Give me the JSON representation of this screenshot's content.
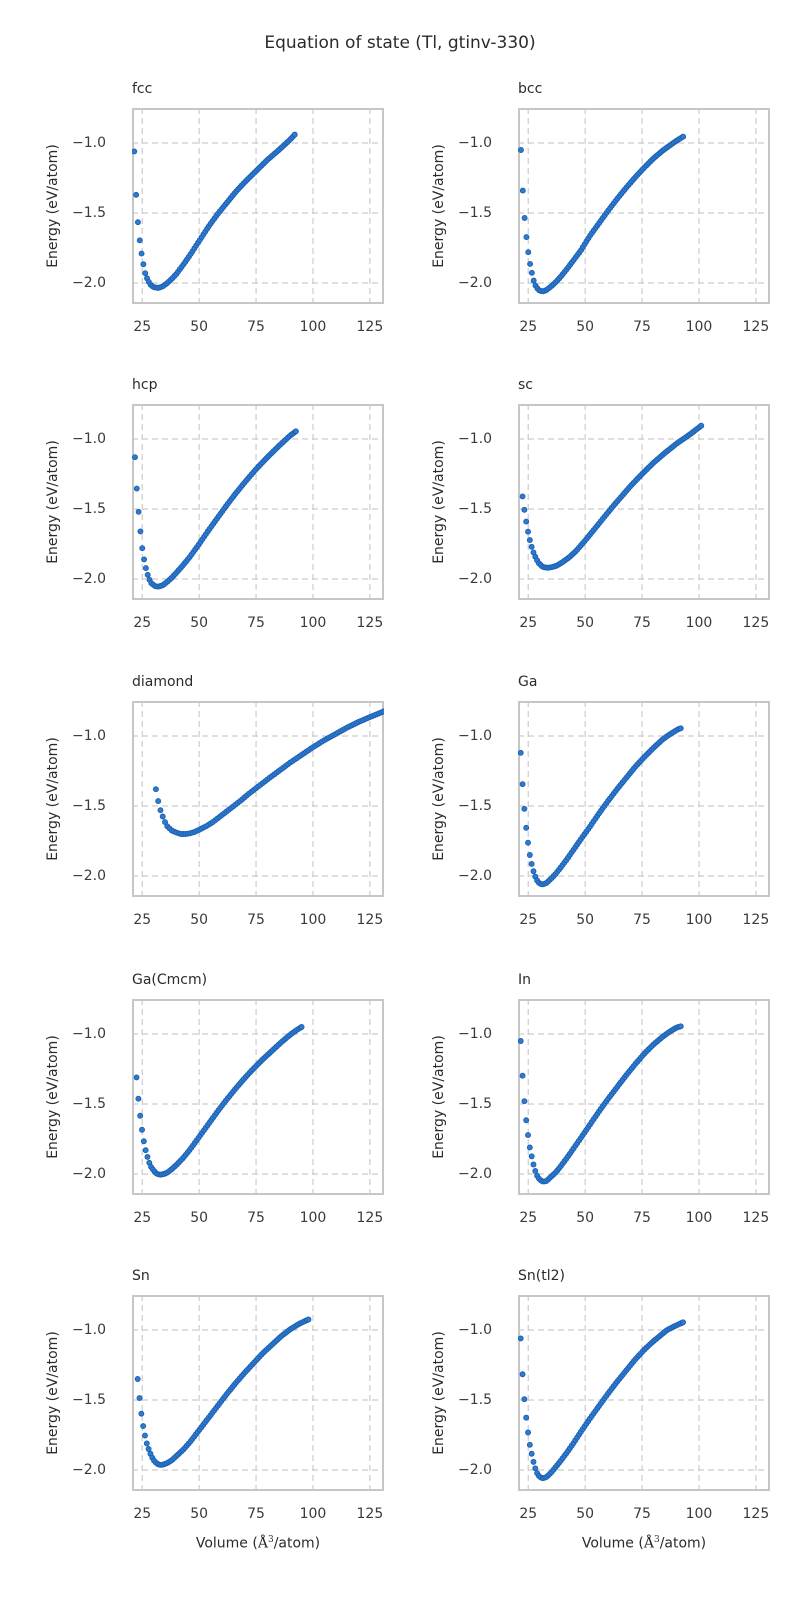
{
  "figure": {
    "title": "Equation of state (Tl, gtinv-330)"
  },
  "axes": {
    "xlabel": "Volume (Å³/atom)",
    "xlabel_prefix": "Volume (",
    "xlabel_math_base": "Å",
    "xlabel_math_sup": "3",
    "xlabel_suffix": "/atom)",
    "ylabel": "Energy (eV/atom)",
    "xticks": [
      25,
      50,
      75,
      100,
      125
    ],
    "xticklabels": [
      "25",
      "50",
      "75",
      "100",
      "125"
    ],
    "yticks": [
      -1.0,
      -1.5,
      -2.0
    ],
    "yticklabels": [
      "−1.0",
      "−1.5",
      "−2.0"
    ],
    "xlim": [
      20.5,
      131.2
    ],
    "ylim": [
      -2.15,
      -0.75
    ],
    "grid": true,
    "grid_style": "dashed"
  },
  "style": {
    "marker_fill": "#2e7ad2",
    "marker_edge": "#1b5fae",
    "grid_color": "#cccccc",
    "frame_color": "#c6c6c6",
    "text_color": "#262626",
    "background": "#ffffff"
  },
  "chart_data": [
    {
      "type": "scatter",
      "title": "fcc",
      "marker_step": 0.8,
      "show_xlabel": false,
      "x": [
        21.5,
        22.3,
        23.2,
        24.2,
        25.3,
        26.3,
        27.3,
        28.5,
        30,
        32,
        34,
        36,
        38,
        40,
        43,
        46,
        50,
        54,
        58,
        62,
        66,
        70,
        75,
        80,
        85,
        88,
        90,
        92
      ],
      "y": [
        -1.06,
        -1.37,
        -1.59,
        -1.74,
        -1.85,
        -1.93,
        -1.975,
        -2.01,
        -2.03,
        -2.035,
        -2.025,
        -2.0,
        -1.97,
        -1.935,
        -1.87,
        -1.8,
        -1.7,
        -1.6,
        -1.51,
        -1.43,
        -1.35,
        -1.28,
        -1.2,
        -1.12,
        -1.05,
        -1.005,
        -0.975,
        -0.94
      ]
    },
    {
      "type": "scatter",
      "title": "bcc",
      "marker_step": 0.8,
      "show_xlabel": false,
      "x": [
        21.8,
        22.6,
        23.5,
        24.5,
        25.5,
        26.5,
        27.5,
        28.5,
        30,
        31.5,
        33,
        35,
        37,
        39,
        42,
        45,
        48,
        52,
        56,
        60,
        64,
        68,
        72,
        76,
        80,
        84,
        87,
        90,
        92,
        93
      ],
      "y": [
        -1.05,
        -1.34,
        -1.56,
        -1.72,
        -1.84,
        -1.92,
        -1.99,
        -2.03,
        -2.055,
        -2.06,
        -2.05,
        -2.025,
        -1.995,
        -1.96,
        -1.9,
        -1.835,
        -1.77,
        -1.665,
        -1.575,
        -1.485,
        -1.4,
        -1.32,
        -1.245,
        -1.175,
        -1.11,
        -1.055,
        -1.02,
        -0.985,
        -0.965,
        -0.955
      ]
    },
    {
      "type": "scatter",
      "title": "hcp",
      "marker_step": 0.8,
      "show_xlabel": false,
      "x": [
        21.8,
        22.8,
        24,
        25,
        26,
        27,
        28,
        29,
        30.5,
        32,
        34,
        36,
        38,
        40,
        43,
        46,
        50,
        54,
        58,
        62,
        66,
        70,
        75,
        80,
        85,
        88,
        90,
        92.5
      ],
      "y": [
        -1.13,
        -1.41,
        -1.63,
        -1.78,
        -1.88,
        -1.95,
        -2.0,
        -2.03,
        -2.05,
        -2.055,
        -2.045,
        -2.02,
        -1.99,
        -1.955,
        -1.9,
        -1.84,
        -1.75,
        -1.655,
        -1.565,
        -1.475,
        -1.39,
        -1.31,
        -1.215,
        -1.13,
        -1.05,
        -1.005,
        -0.975,
        -0.945
      ]
    },
    {
      "type": "scatter",
      "title": "sc",
      "marker_step": 0.8,
      "show_xlabel": false,
      "x": [
        22.5,
        23.5,
        24.5,
        25.5,
        26.5,
        27.5,
        28.5,
        29.5,
        30.5,
        31.5,
        33.5,
        35.5,
        37.5,
        40,
        43,
        46,
        50,
        54,
        58,
        62,
        66,
        70,
        75,
        80,
        85,
        90,
        94,
        97,
        99,
        101
      ],
      "y": [
        -1.41,
        -1.53,
        -1.63,
        -1.71,
        -1.77,
        -1.82,
        -1.855,
        -1.885,
        -1.9,
        -1.915,
        -1.92,
        -1.915,
        -1.905,
        -1.88,
        -1.845,
        -1.8,
        -1.725,
        -1.645,
        -1.565,
        -1.485,
        -1.41,
        -1.335,
        -1.25,
        -1.17,
        -1.1,
        -1.035,
        -0.99,
        -0.955,
        -0.93,
        -0.905
      ]
    },
    {
      "type": "scatter",
      "title": "diamond",
      "marker_step": 1.0,
      "show_xlabel": false,
      "x": [
        31,
        32,
        33,
        34,
        35,
        36,
        38,
        40,
        42,
        44,
        46,
        48,
        50,
        53,
        56,
        60,
        64,
        68,
        72,
        76,
        80,
        85,
        90,
        95,
        100,
        105,
        110,
        115,
        120,
        125,
        128,
        131
      ],
      "y": [
        -1.38,
        -1.465,
        -1.53,
        -1.575,
        -1.615,
        -1.645,
        -1.675,
        -1.69,
        -1.7,
        -1.7,
        -1.695,
        -1.685,
        -1.67,
        -1.645,
        -1.615,
        -1.565,
        -1.515,
        -1.465,
        -1.41,
        -1.36,
        -1.31,
        -1.25,
        -1.19,
        -1.135,
        -1.08,
        -1.03,
        -0.985,
        -0.94,
        -0.9,
        -0.865,
        -0.845,
        -0.825
      ]
    },
    {
      "type": "scatter",
      "title": "Ga",
      "marker_step": 0.8,
      "show_xlabel": false,
      "x": [
        21.7,
        22.7,
        23.7,
        24.7,
        25.7,
        26.7,
        27.7,
        28.8,
        30,
        31.5,
        33,
        35,
        37,
        39,
        42,
        45,
        48,
        52,
        56,
        60,
        64,
        68,
        72,
        76,
        80,
        84,
        87,
        89,
        91,
        92
      ],
      "y": [
        -1.12,
        -1.4,
        -1.6,
        -1.74,
        -1.85,
        -1.93,
        -1.99,
        -2.03,
        -2.055,
        -2.06,
        -2.05,
        -2.02,
        -1.985,
        -1.945,
        -1.88,
        -1.81,
        -1.74,
        -1.65,
        -1.555,
        -1.465,
        -1.38,
        -1.3,
        -1.22,
        -1.15,
        -1.085,
        -1.025,
        -0.99,
        -0.97,
        -0.95,
        -0.945
      ]
    },
    {
      "type": "scatter",
      "title": "Ga(Cmcm)",
      "marker_step": 0.8,
      "show_xlabel": false,
      "x": [
        22.5,
        23.5,
        24.5,
        25.5,
        26.5,
        27.5,
        28.5,
        30,
        31.5,
        33,
        34.5,
        36,
        38,
        40,
        43,
        46,
        50,
        54,
        58,
        62,
        66,
        70,
        74,
        78,
        82,
        86,
        90,
        93,
        95
      ],
      "y": [
        -1.31,
        -1.5,
        -1.64,
        -1.75,
        -1.83,
        -1.89,
        -1.94,
        -1.975,
        -2.0,
        -2.005,
        -2.0,
        -1.99,
        -1.965,
        -1.935,
        -1.885,
        -1.825,
        -1.735,
        -1.645,
        -1.555,
        -1.47,
        -1.39,
        -1.315,
        -1.245,
        -1.18,
        -1.12,
        -1.06,
        -1.005,
        -0.97,
        -0.95
      ]
    },
    {
      "type": "scatter",
      "title": "In",
      "marker_step": 0.8,
      "show_xlabel": false,
      "x": [
        21.7,
        22.7,
        23.7,
        24.7,
        25.7,
        26.7,
        27.7,
        28.8,
        30,
        31.5,
        33,
        35,
        37,
        39,
        42,
        45,
        48,
        52,
        56,
        60,
        64,
        68,
        72,
        76,
        80,
        84,
        87,
        90,
        92
      ],
      "y": [
        -1.05,
        -1.36,
        -1.56,
        -1.7,
        -1.81,
        -1.89,
        -1.96,
        -2.01,
        -2.04,
        -2.055,
        -2.05,
        -2.02,
        -1.99,
        -1.95,
        -1.885,
        -1.815,
        -1.745,
        -1.65,
        -1.555,
        -1.465,
        -1.38,
        -1.295,
        -1.215,
        -1.14,
        -1.075,
        -1.02,
        -0.985,
        -0.955,
        -0.945
      ]
    },
    {
      "type": "scatter",
      "title": "Sn",
      "marker_step": 0.8,
      "show_xlabel": true,
      "x": [
        23,
        24,
        25,
        26,
        27,
        28,
        29,
        30,
        31.5,
        33,
        34.5,
        36,
        38,
        40,
        43,
        46,
        50,
        54,
        58,
        62,
        66,
        70,
        74,
        78,
        82,
        86,
        90,
        94,
        96,
        98
      ],
      "y": [
        -1.35,
        -1.52,
        -1.65,
        -1.74,
        -1.81,
        -1.86,
        -1.9,
        -1.93,
        -1.955,
        -1.965,
        -1.96,
        -1.95,
        -1.93,
        -1.9,
        -1.855,
        -1.8,
        -1.715,
        -1.63,
        -1.545,
        -1.46,
        -1.38,
        -1.305,
        -1.235,
        -1.165,
        -1.105,
        -1.045,
        -0.995,
        -0.955,
        -0.94,
        -0.925
      ]
    },
    {
      "type": "scatter",
      "title": "Sn(tl2)",
      "marker_step": 0.8,
      "show_xlabel": true,
      "x": [
        21.7,
        22.7,
        23.7,
        24.7,
        25.7,
        26.7,
        27.7,
        28.8,
        30,
        31.5,
        33,
        35,
        37,
        39,
        42,
        45,
        48,
        52,
        56,
        60,
        64,
        68,
        72,
        76,
        80,
        83,
        86,
        89,
        91,
        93
      ],
      "y": [
        -1.06,
        -1.38,
        -1.57,
        -1.71,
        -1.82,
        -1.9,
        -1.97,
        -2.02,
        -2.05,
        -2.06,
        -2.05,
        -2.02,
        -1.98,
        -1.94,
        -1.875,
        -1.805,
        -1.73,
        -1.635,
        -1.545,
        -1.455,
        -1.37,
        -1.29,
        -1.21,
        -1.14,
        -1.08,
        -1.04,
        -1.0,
        -0.975,
        -0.96,
        -0.945
      ]
    }
  ]
}
